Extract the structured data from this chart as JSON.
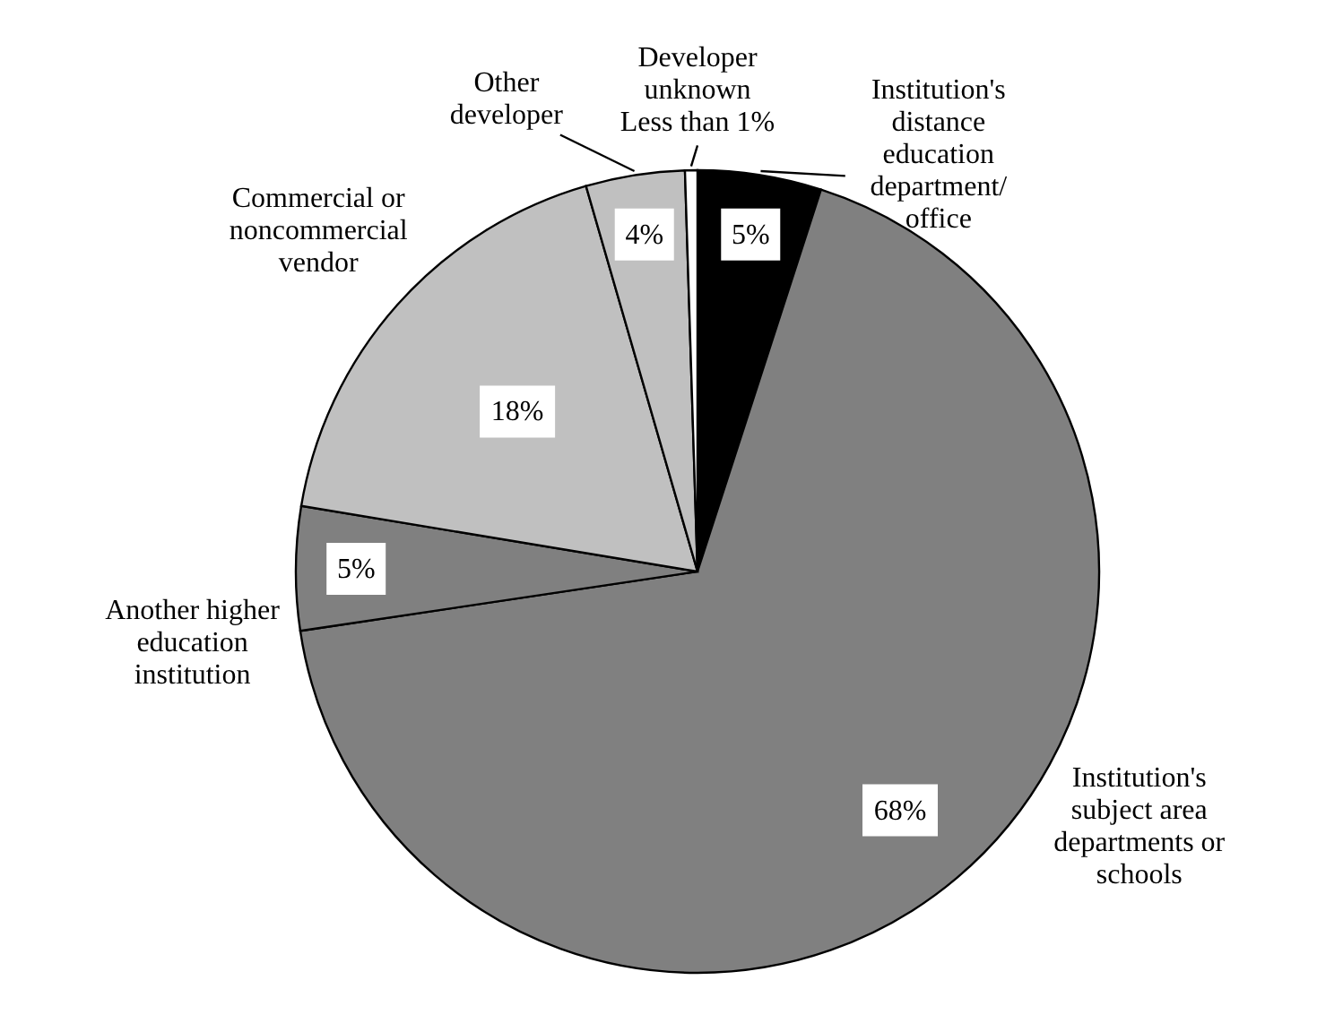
{
  "chart_data": {
    "type": "pie",
    "categories": [
      "Institution's distance education department/ office",
      "Institution's subject area departments or schools",
      "Another higher education institution",
      "Commercial or noncommercial vendor",
      "Other developer",
      "Developer unknown"
    ],
    "values": [
      5,
      68,
      5,
      18,
      4,
      0.5
    ],
    "colors": [
      "#000000",
      "#808080",
      "#808080",
      "#c0c0c0",
      "#c0c0c0",
      "#ffffff"
    ],
    "value_labels": [
      "5%",
      "68%",
      "5%",
      "18%",
      "4%",
      "Less than 1%"
    ]
  }
}
